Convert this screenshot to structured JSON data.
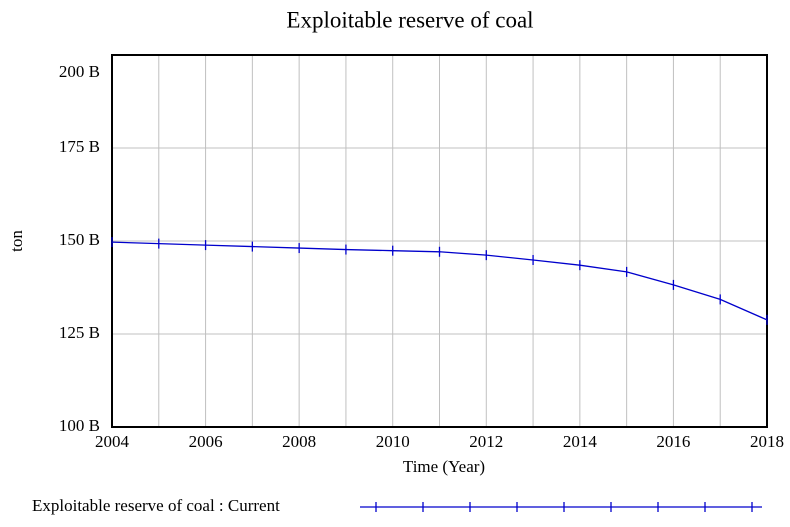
{
  "chart_data": {
    "type": "line",
    "title": "Exploitable reserve of coal",
    "x_label": "Time (Year)",
    "y_label": "ton",
    "x": [
      2004,
      2005,
      2006,
      2007,
      2008,
      2009,
      2010,
      2011,
      2012,
      2013,
      2014,
      2015,
      2016,
      2017,
      2018
    ],
    "series": [
      {
        "name": "Exploitable reserve of coal : Current",
        "color": "#0000cc",
        "values": [
          149700000000,
          149300000000,
          148900000000,
          148500000000,
          148100000000,
          147700000000,
          147400000000,
          147100000000,
          146200000000,
          144900000000,
          143500000000,
          141700000000,
          138200000000,
          134300000000,
          128800000000
        ]
      }
    ],
    "xlim": [
      2004,
      2018
    ],
    "xticks": [
      2004,
      2006,
      2008,
      2010,
      2012,
      2014,
      2016,
      2018
    ],
    "x_minor_ticks": [
      2005,
      2007,
      2009,
      2011,
      2013,
      2015,
      2017
    ],
    "ylim": [
      100000000000,
      200000000000
    ],
    "yticks": [
      {
        "value": 100000000000,
        "label": "100 B"
      },
      {
        "value": 125000000000,
        "label": "125 B"
      },
      {
        "value": 150000000000,
        "label": "150 B"
      },
      {
        "value": 175000000000,
        "label": "175 B"
      },
      {
        "value": 200000000000,
        "label": "200 B"
      }
    ],
    "grid": true
  }
}
